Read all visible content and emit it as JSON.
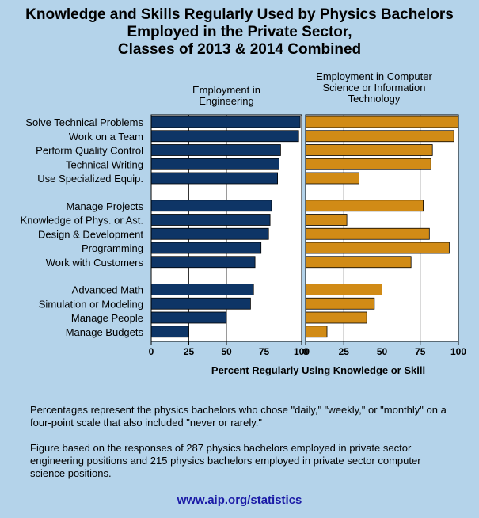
{
  "title": {
    "line1": "Knowledge and Skills Regularly Used by Physics Bachelors",
    "line2": "Employed in the Private Sector,",
    "line3": "Classes of 2013 & 2014 Combined"
  },
  "colors": {
    "engineering": "#0e3566",
    "computer": "#d18b16",
    "background": "#b4d3ea"
  },
  "chart_data": {
    "type": "bar",
    "orientation": "horizontal",
    "title": "Knowledge and Skills Regularly Used by Physics Bachelors Employed in the Private Sector, Classes of 2013 & 2014 Combined",
    "xlabel": "Percent Regularly Using Knowledge or Skill",
    "xlim": [
      0,
      100
    ],
    "xticks": [
      0,
      25,
      50,
      75,
      100
    ],
    "grid": true,
    "groups": [
      [
        "Solve Technical Problems",
        "Work on a Team",
        "Perform Quality Control",
        "Technical Writing",
        "Use Specialized Equip."
      ],
      [
        "Manage Projects",
        "Knowledge of Phys. or Ast.",
        "Design & Development",
        "Programming",
        "Work with Customers"
      ],
      [
        "Advanced Math",
        "Simulation or Modeling",
        "Manage People",
        "Manage Budgets"
      ]
    ],
    "categories": [
      "Solve Technical Problems",
      "Work on a Team",
      "Perform Quality Control",
      "Technical Writing",
      "Use Specialized Equip.",
      "Manage Projects",
      "Knowledge of Phys. or Ast.",
      "Design & Development",
      "Programming",
      "Work with Customers",
      "Advanced Math",
      "Simulation or Modeling",
      "Manage People",
      "Manage Budgets"
    ],
    "series": [
      {
        "name": "Employment in Engineering",
        "panel_label": [
          "Employment in",
          "Engineering"
        ],
        "values": [
          99,
          98,
          86,
          85,
          84,
          80,
          79,
          78,
          73,
          69,
          68,
          66,
          50,
          25
        ]
      },
      {
        "name": "Employment in Computer Science or Information Technology",
        "panel_label": [
          "Employment in Computer",
          "Science or Information",
          "Technology"
        ],
        "values": [
          100,
          97,
          83,
          82,
          35,
          77,
          27,
          81,
          94,
          69,
          50,
          45,
          40,
          14
        ]
      }
    ]
  },
  "notes": {
    "note1": "Percentages represent the physics bachelors who chose \"daily,\" \"weekly,\" or \"monthly\" on a four-point scale that also included \"never or rarely.\"",
    "note2": "Figure based on the responses of 287 physics bachelors employed in private sector engineering positions and 215 physics bachelors employed in private sector computer science positions."
  },
  "link_text": "www.aip.org/statistics"
}
